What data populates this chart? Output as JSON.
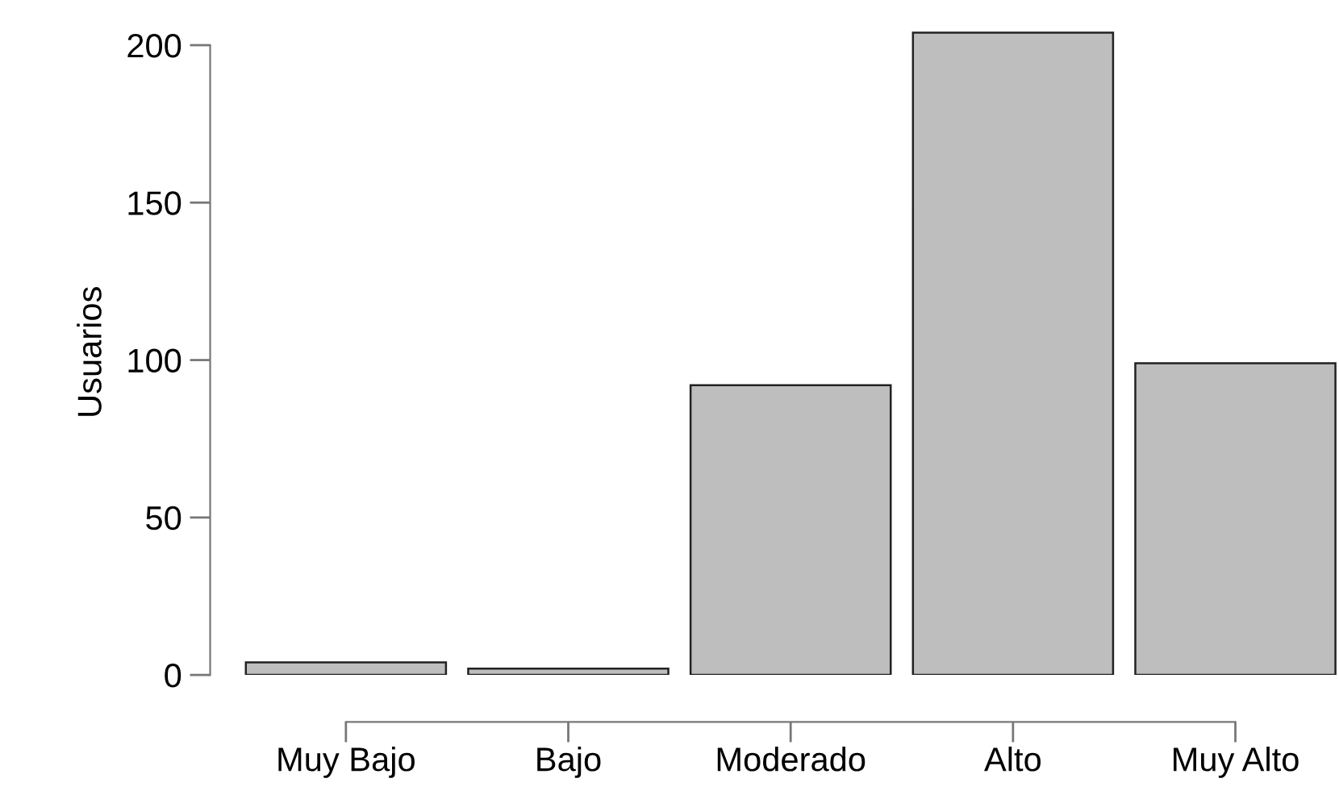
{
  "chart_data": {
    "type": "bar",
    "ylabel": "Usuarios",
    "categories": [
      "Muy Bajo",
      "Bajo",
      "Moderado",
      "Alto",
      "Muy Alto"
    ],
    "values": [
      4,
      2,
      92,
      204,
      99
    ],
    "color": "#bebebe",
    "ylim": [
      0,
      205
    ],
    "yticks": [
      0,
      50,
      100,
      150,
      200
    ],
    "grid": false,
    "legend": false
  }
}
